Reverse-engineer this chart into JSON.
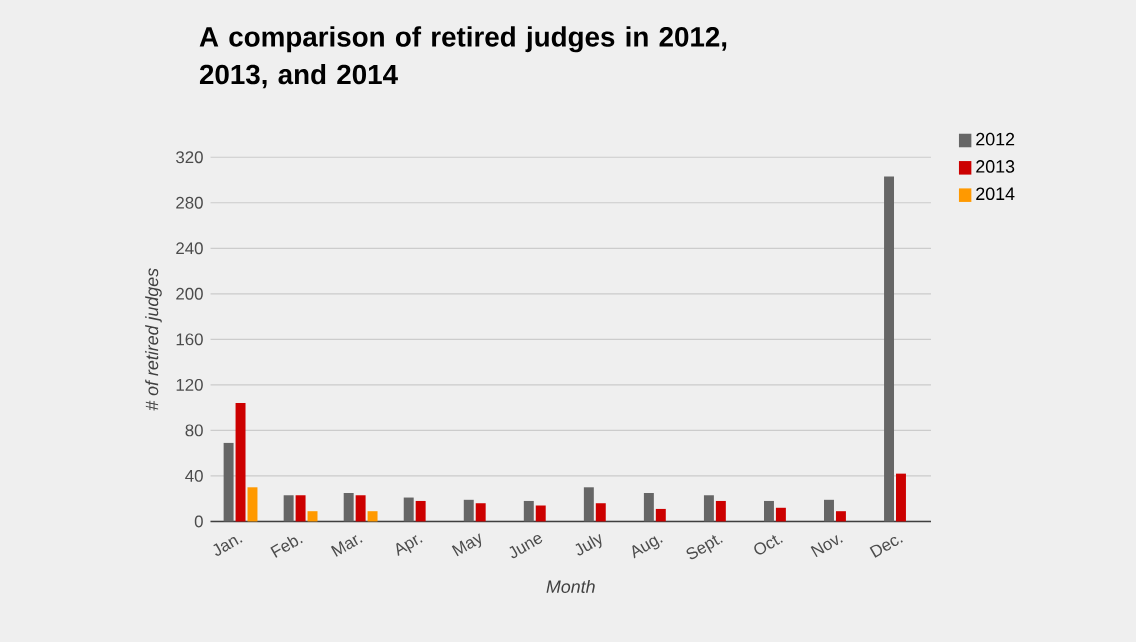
{
  "chart_data": {
    "type": "bar",
    "title": "A comparison of retired judges in 2012, 2013, and 2014",
    "xlabel": "Month",
    "ylabel": "# of retired judges",
    "categories": [
      "Jan.",
      "Feb.",
      "Mar.",
      "Apr.",
      "May",
      "June",
      "July",
      "Aug.",
      "Sept.",
      "Oct.",
      "Nov.",
      "Dec."
    ],
    "series": [
      {
        "name": "2012",
        "color": "#666666",
        "values": [
          69,
          23,
          25,
          21,
          19,
          18,
          30,
          25,
          23,
          18,
          19,
          303
        ]
      },
      {
        "name": "2013",
        "color": "#cc0000",
        "values": [
          104,
          23,
          23,
          18,
          16,
          14,
          16,
          11,
          18,
          12,
          9,
          42
        ]
      },
      {
        "name": "2014",
        "color": "#ff9900",
        "values": [
          30,
          9,
          9,
          null,
          null,
          null,
          null,
          null,
          null,
          null,
          null,
          null
        ]
      }
    ],
    "ylim": [
      0,
      320
    ],
    "yticks": [
      0,
      40,
      80,
      120,
      160,
      200,
      240,
      280,
      320
    ],
    "grid": "y",
    "legend": "top right"
  }
}
